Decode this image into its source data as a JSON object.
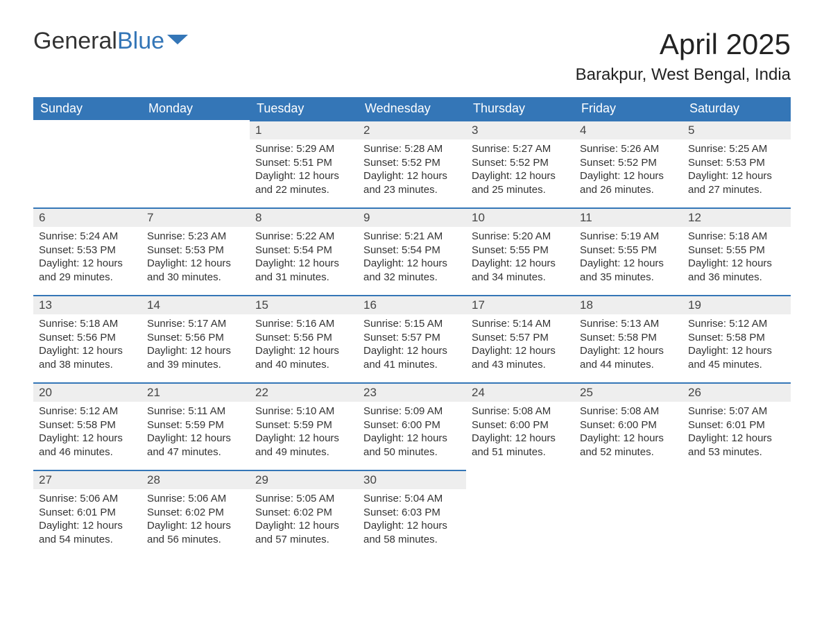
{
  "logo": {
    "text1": "General",
    "text2": "Blue"
  },
  "title": "April 2025",
  "location": "Barakpur, West Bengal, India",
  "colors": {
    "header_bg": "#3476b7",
    "header_text": "#ffffff",
    "daynum_bg": "#eeeeee",
    "daynum_border": "#3476b7",
    "body_text": "#333333",
    "page_bg": "#ffffff"
  },
  "weekdays": [
    "Sunday",
    "Monday",
    "Tuesday",
    "Wednesday",
    "Thursday",
    "Friday",
    "Saturday"
  ],
  "weeks": [
    [
      null,
      null,
      {
        "n": "1",
        "sunrise": "5:29 AM",
        "sunset": "5:51 PM",
        "daylight": "12 hours and 22 minutes."
      },
      {
        "n": "2",
        "sunrise": "5:28 AM",
        "sunset": "5:52 PM",
        "daylight": "12 hours and 23 minutes."
      },
      {
        "n": "3",
        "sunrise": "5:27 AM",
        "sunset": "5:52 PM",
        "daylight": "12 hours and 25 minutes."
      },
      {
        "n": "4",
        "sunrise": "5:26 AM",
        "sunset": "5:52 PM",
        "daylight": "12 hours and 26 minutes."
      },
      {
        "n": "5",
        "sunrise": "5:25 AM",
        "sunset": "5:53 PM",
        "daylight": "12 hours and 27 minutes."
      }
    ],
    [
      {
        "n": "6",
        "sunrise": "5:24 AM",
        "sunset": "5:53 PM",
        "daylight": "12 hours and 29 minutes."
      },
      {
        "n": "7",
        "sunrise": "5:23 AM",
        "sunset": "5:53 PM",
        "daylight": "12 hours and 30 minutes."
      },
      {
        "n": "8",
        "sunrise": "5:22 AM",
        "sunset": "5:54 PM",
        "daylight": "12 hours and 31 minutes."
      },
      {
        "n": "9",
        "sunrise": "5:21 AM",
        "sunset": "5:54 PM",
        "daylight": "12 hours and 32 minutes."
      },
      {
        "n": "10",
        "sunrise": "5:20 AM",
        "sunset": "5:55 PM",
        "daylight": "12 hours and 34 minutes."
      },
      {
        "n": "11",
        "sunrise": "5:19 AM",
        "sunset": "5:55 PM",
        "daylight": "12 hours and 35 minutes."
      },
      {
        "n": "12",
        "sunrise": "5:18 AM",
        "sunset": "5:55 PM",
        "daylight": "12 hours and 36 minutes."
      }
    ],
    [
      {
        "n": "13",
        "sunrise": "5:18 AM",
        "sunset": "5:56 PM",
        "daylight": "12 hours and 38 minutes."
      },
      {
        "n": "14",
        "sunrise": "5:17 AM",
        "sunset": "5:56 PM",
        "daylight": "12 hours and 39 minutes."
      },
      {
        "n": "15",
        "sunrise": "5:16 AM",
        "sunset": "5:56 PM",
        "daylight": "12 hours and 40 minutes."
      },
      {
        "n": "16",
        "sunrise": "5:15 AM",
        "sunset": "5:57 PM",
        "daylight": "12 hours and 41 minutes."
      },
      {
        "n": "17",
        "sunrise": "5:14 AM",
        "sunset": "5:57 PM",
        "daylight": "12 hours and 43 minutes."
      },
      {
        "n": "18",
        "sunrise": "5:13 AM",
        "sunset": "5:58 PM",
        "daylight": "12 hours and 44 minutes."
      },
      {
        "n": "19",
        "sunrise": "5:12 AM",
        "sunset": "5:58 PM",
        "daylight": "12 hours and 45 minutes."
      }
    ],
    [
      {
        "n": "20",
        "sunrise": "5:12 AM",
        "sunset": "5:58 PM",
        "daylight": "12 hours and 46 minutes."
      },
      {
        "n": "21",
        "sunrise": "5:11 AM",
        "sunset": "5:59 PM",
        "daylight": "12 hours and 47 minutes."
      },
      {
        "n": "22",
        "sunrise": "5:10 AM",
        "sunset": "5:59 PM",
        "daylight": "12 hours and 49 minutes."
      },
      {
        "n": "23",
        "sunrise": "5:09 AM",
        "sunset": "6:00 PM",
        "daylight": "12 hours and 50 minutes."
      },
      {
        "n": "24",
        "sunrise": "5:08 AM",
        "sunset": "6:00 PM",
        "daylight": "12 hours and 51 minutes."
      },
      {
        "n": "25",
        "sunrise": "5:08 AM",
        "sunset": "6:00 PM",
        "daylight": "12 hours and 52 minutes."
      },
      {
        "n": "26",
        "sunrise": "5:07 AM",
        "sunset": "6:01 PM",
        "daylight": "12 hours and 53 minutes."
      }
    ],
    [
      {
        "n": "27",
        "sunrise": "5:06 AM",
        "sunset": "6:01 PM",
        "daylight": "12 hours and 54 minutes."
      },
      {
        "n": "28",
        "sunrise": "5:06 AM",
        "sunset": "6:02 PM",
        "daylight": "12 hours and 56 minutes."
      },
      {
        "n": "29",
        "sunrise": "5:05 AM",
        "sunset": "6:02 PM",
        "daylight": "12 hours and 57 minutes."
      },
      {
        "n": "30",
        "sunrise": "5:04 AM",
        "sunset": "6:03 PM",
        "daylight": "12 hours and 58 minutes."
      },
      null,
      null,
      null
    ]
  ],
  "labels": {
    "sunrise": "Sunrise: ",
    "sunset": "Sunset: ",
    "daylight": "Daylight: "
  }
}
